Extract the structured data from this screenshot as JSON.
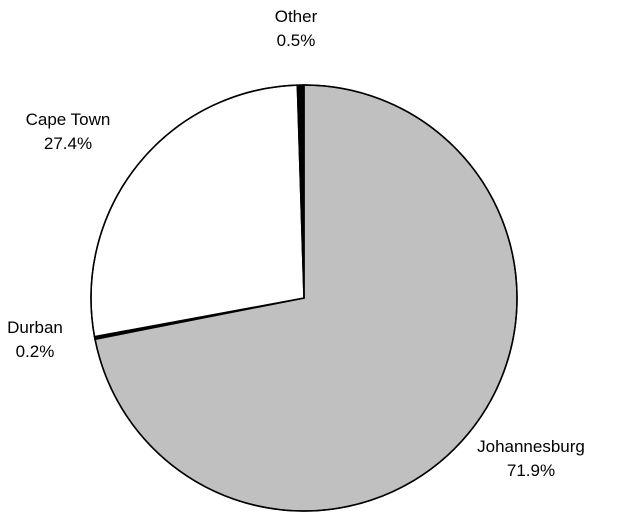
{
  "chart_data": {
    "type": "pie",
    "title": "",
    "categories": [
      "Johannesburg",
      "Durban",
      "Cape Town",
      "Other"
    ],
    "values": [
      71.9,
      0.2,
      27.4,
      0.5
    ],
    "value_labels": [
      "71.9%",
      "0.2%",
      "27.4%",
      "0.5%"
    ],
    "colors": [
      "#c0c0c0",
      "#000000",
      "#ffffff",
      "#000000"
    ],
    "slice_border_color": "#000000",
    "legend": "none",
    "start_angle": "12 o'clock",
    "direction": "clockwise"
  }
}
